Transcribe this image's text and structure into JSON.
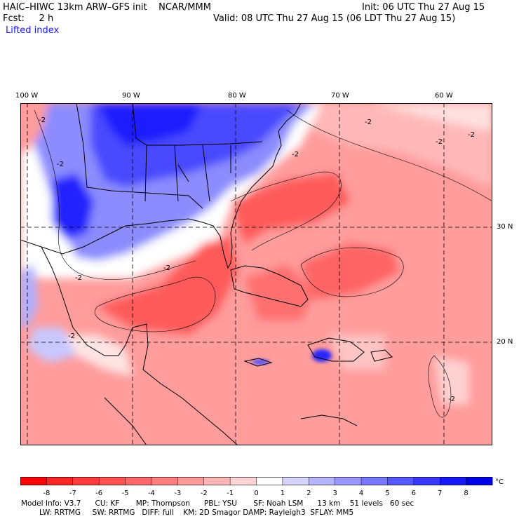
{
  "header": {
    "model_line": "HAIC–HIWC 13km ARW–GFS init    NCAR/MMM",
    "init_line": "Init: 06 UTC Thu 27 Aug 15",
    "fcst_line": "Fcst:     2 h",
    "valid_line": "Valid: 08 UTC Thu 27 Aug 15 (06 LDT Thu 27 Aug 15)",
    "field_name": "Lifted index"
  },
  "map": {
    "lon_labels": [
      "100 W",
      "90 W",
      "80 W",
      "70 W",
      "60 W"
    ],
    "lat_labels": [
      "30 N",
      "20 N"
    ],
    "contour_label": "-2",
    "regions": {
      "stable_blue": "Southeastern US / Gulf coast",
      "unstable_red": "Gulf of Mexico, Caribbean, western Atlantic"
    }
  },
  "colorbar": {
    "ticks": [
      "-8",
      "-7",
      "-6",
      "-5",
      "-4",
      "-3",
      "-2",
      "-1",
      "0",
      "1",
      "2",
      "3",
      "4",
      "5",
      "6",
      "7",
      "8"
    ],
    "unit": "°C",
    "colors": [
      "#ff0000",
      "#ff2626",
      "#ff3c3c",
      "#ff5252",
      "#ff6868",
      "#ff7e7e",
      "#ff9a9a",
      "#ffb6b6",
      "#ffd4d4",
      "#ffffff",
      "#d4d4ff",
      "#b4b4ff",
      "#9898ff",
      "#7878ff",
      "#5858ff",
      "#3838ff",
      "#1818ff",
      "#0000e6"
    ]
  },
  "footer": {
    "line1": "Model Info: V3.7      CU: KF       MP: Thompson      PBL: YSU       SF: Noah LSM      13 km    51 levels   60 sec",
    "line2": "LW: RRTMG     SW: RRTMG   DIFF: full    KM: 2D Smagor DAMP: Rayleigh3  SFLAY: MM5"
  }
}
